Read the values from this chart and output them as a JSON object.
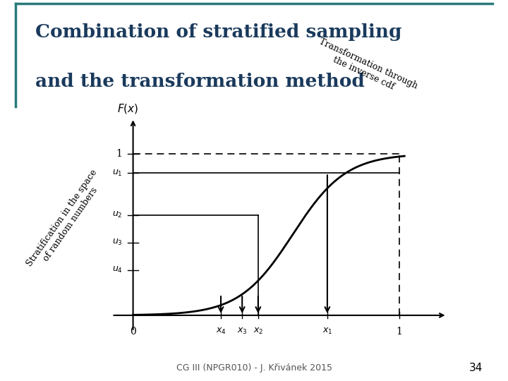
{
  "title_line1": "Combination of stratified sampling",
  "title_line2": "and the transformation method",
  "footer": "CG III (NPGR010) - J. Křivánek 2015",
  "page_number": "34",
  "background_color": "#ffffff",
  "title_color": "#1a3a5c",
  "border_color": "#2a7a7a",
  "curve_color": "#000000",
  "u_values": [
    0.88,
    0.62,
    0.45,
    0.28
  ],
  "u_labels": [
    "u_1",
    "u_2",
    "u_3",
    "u_4"
  ],
  "x_labels": [
    "x_4",
    "x_3",
    "x_2",
    "x_1"
  ],
  "x_positions": [
    0.33,
    0.41,
    0.47,
    0.73
  ],
  "annotation_left_line1": "Stratification in the space",
  "annotation_left_line2": "of random numbers",
  "annotation_right_line1": "Transformation through",
  "annotation_right_line2": "the inverse cdf"
}
